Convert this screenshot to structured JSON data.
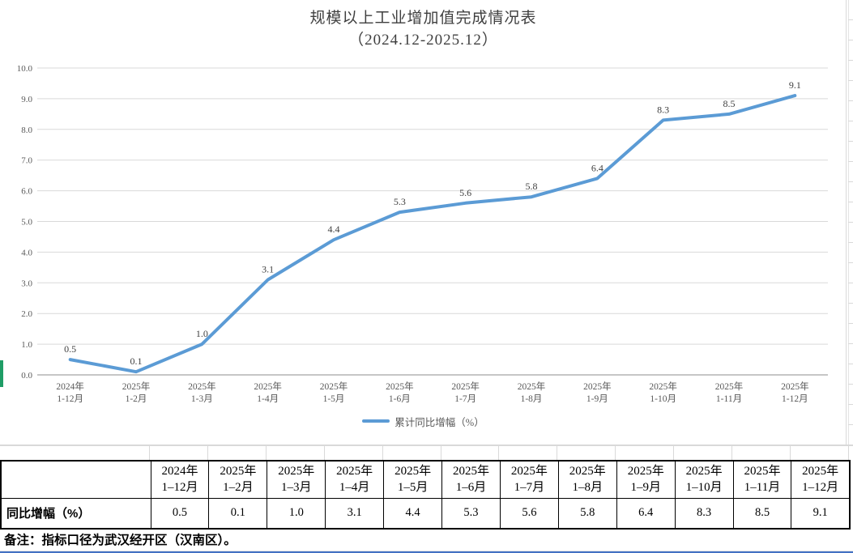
{
  "chart_data": {
    "type": "line",
    "title": "规模以上工业增加值完成情况表",
    "subtitle": "（2024.12-2025.12）",
    "legend": "累计同比增幅（%）",
    "categories": [
      {
        "line1": "2024年",
        "line2": "1-12月"
      },
      {
        "line1": "2025年",
        "line2": "1-2月"
      },
      {
        "line1": "2025年",
        "line2": "1-3月"
      },
      {
        "line1": "2025年",
        "line2": "1-4月"
      },
      {
        "line1": "2025年",
        "line2": "1-5月"
      },
      {
        "line1": "2025年",
        "line2": "1-6月"
      },
      {
        "line1": "2025年",
        "line2": "1-7月"
      },
      {
        "line1": "2025年",
        "line2": "1-8月"
      },
      {
        "line1": "2025年",
        "line2": "1-9月"
      },
      {
        "line1": "2025年",
        "line2": "1-10月"
      },
      {
        "line1": "2025年",
        "line2": "1-11月"
      },
      {
        "line1": "2025年",
        "line2": "1-12月"
      }
    ],
    "values": [
      0.5,
      0.1,
      1.0,
      3.1,
      4.4,
      5.3,
      5.6,
      5.8,
      6.4,
      8.3,
      8.5,
      9.1
    ],
    "ylim": [
      0,
      10
    ],
    "ytick_step": 1.0,
    "grid": true,
    "legend_position": "bottom",
    "xlabel": "",
    "ylabel": ""
  },
  "table": {
    "row_label": "同比增幅（%）",
    "columns": [
      {
        "line1": "2024年",
        "line2": "1–12月"
      },
      {
        "line1": "2025年",
        "line2": "1–2月"
      },
      {
        "line1": "2025年",
        "line2": "1–3月"
      },
      {
        "line1": "2025年",
        "line2": "1–4月"
      },
      {
        "line1": "2025年",
        "line2": "1–5月"
      },
      {
        "line1": "2025年",
        "line2": "1–6月"
      },
      {
        "line1": "2025年",
        "line2": "1–7月"
      },
      {
        "line1": "2025年",
        "line2": "1–8月"
      },
      {
        "line1": "2025年",
        "line2": "1–9月"
      },
      {
        "line1": "2025年",
        "line2": "1–10月"
      },
      {
        "line1": "2025年",
        "line2": "1–11月"
      },
      {
        "line1": "2025年",
        "line2": "1–12月"
      }
    ],
    "values": [
      "0.5",
      "0.1",
      "1.0",
      "3.1",
      "4.4",
      "5.3",
      "5.6",
      "5.8",
      "6.4",
      "8.3",
      "8.5",
      "9.1"
    ]
  },
  "note": "备注：指标口径为武汉经开区（汉南区）。",
  "colors": {
    "line": "#5B9BD5",
    "gridline": "#d9d9d9",
    "axis": "#b3b3b3",
    "axis_text": "#595959",
    "label_text": "#404040",
    "sheet_indicator_green": "#1f9d66",
    "bottom_accent_blue": "#4472C4"
  }
}
